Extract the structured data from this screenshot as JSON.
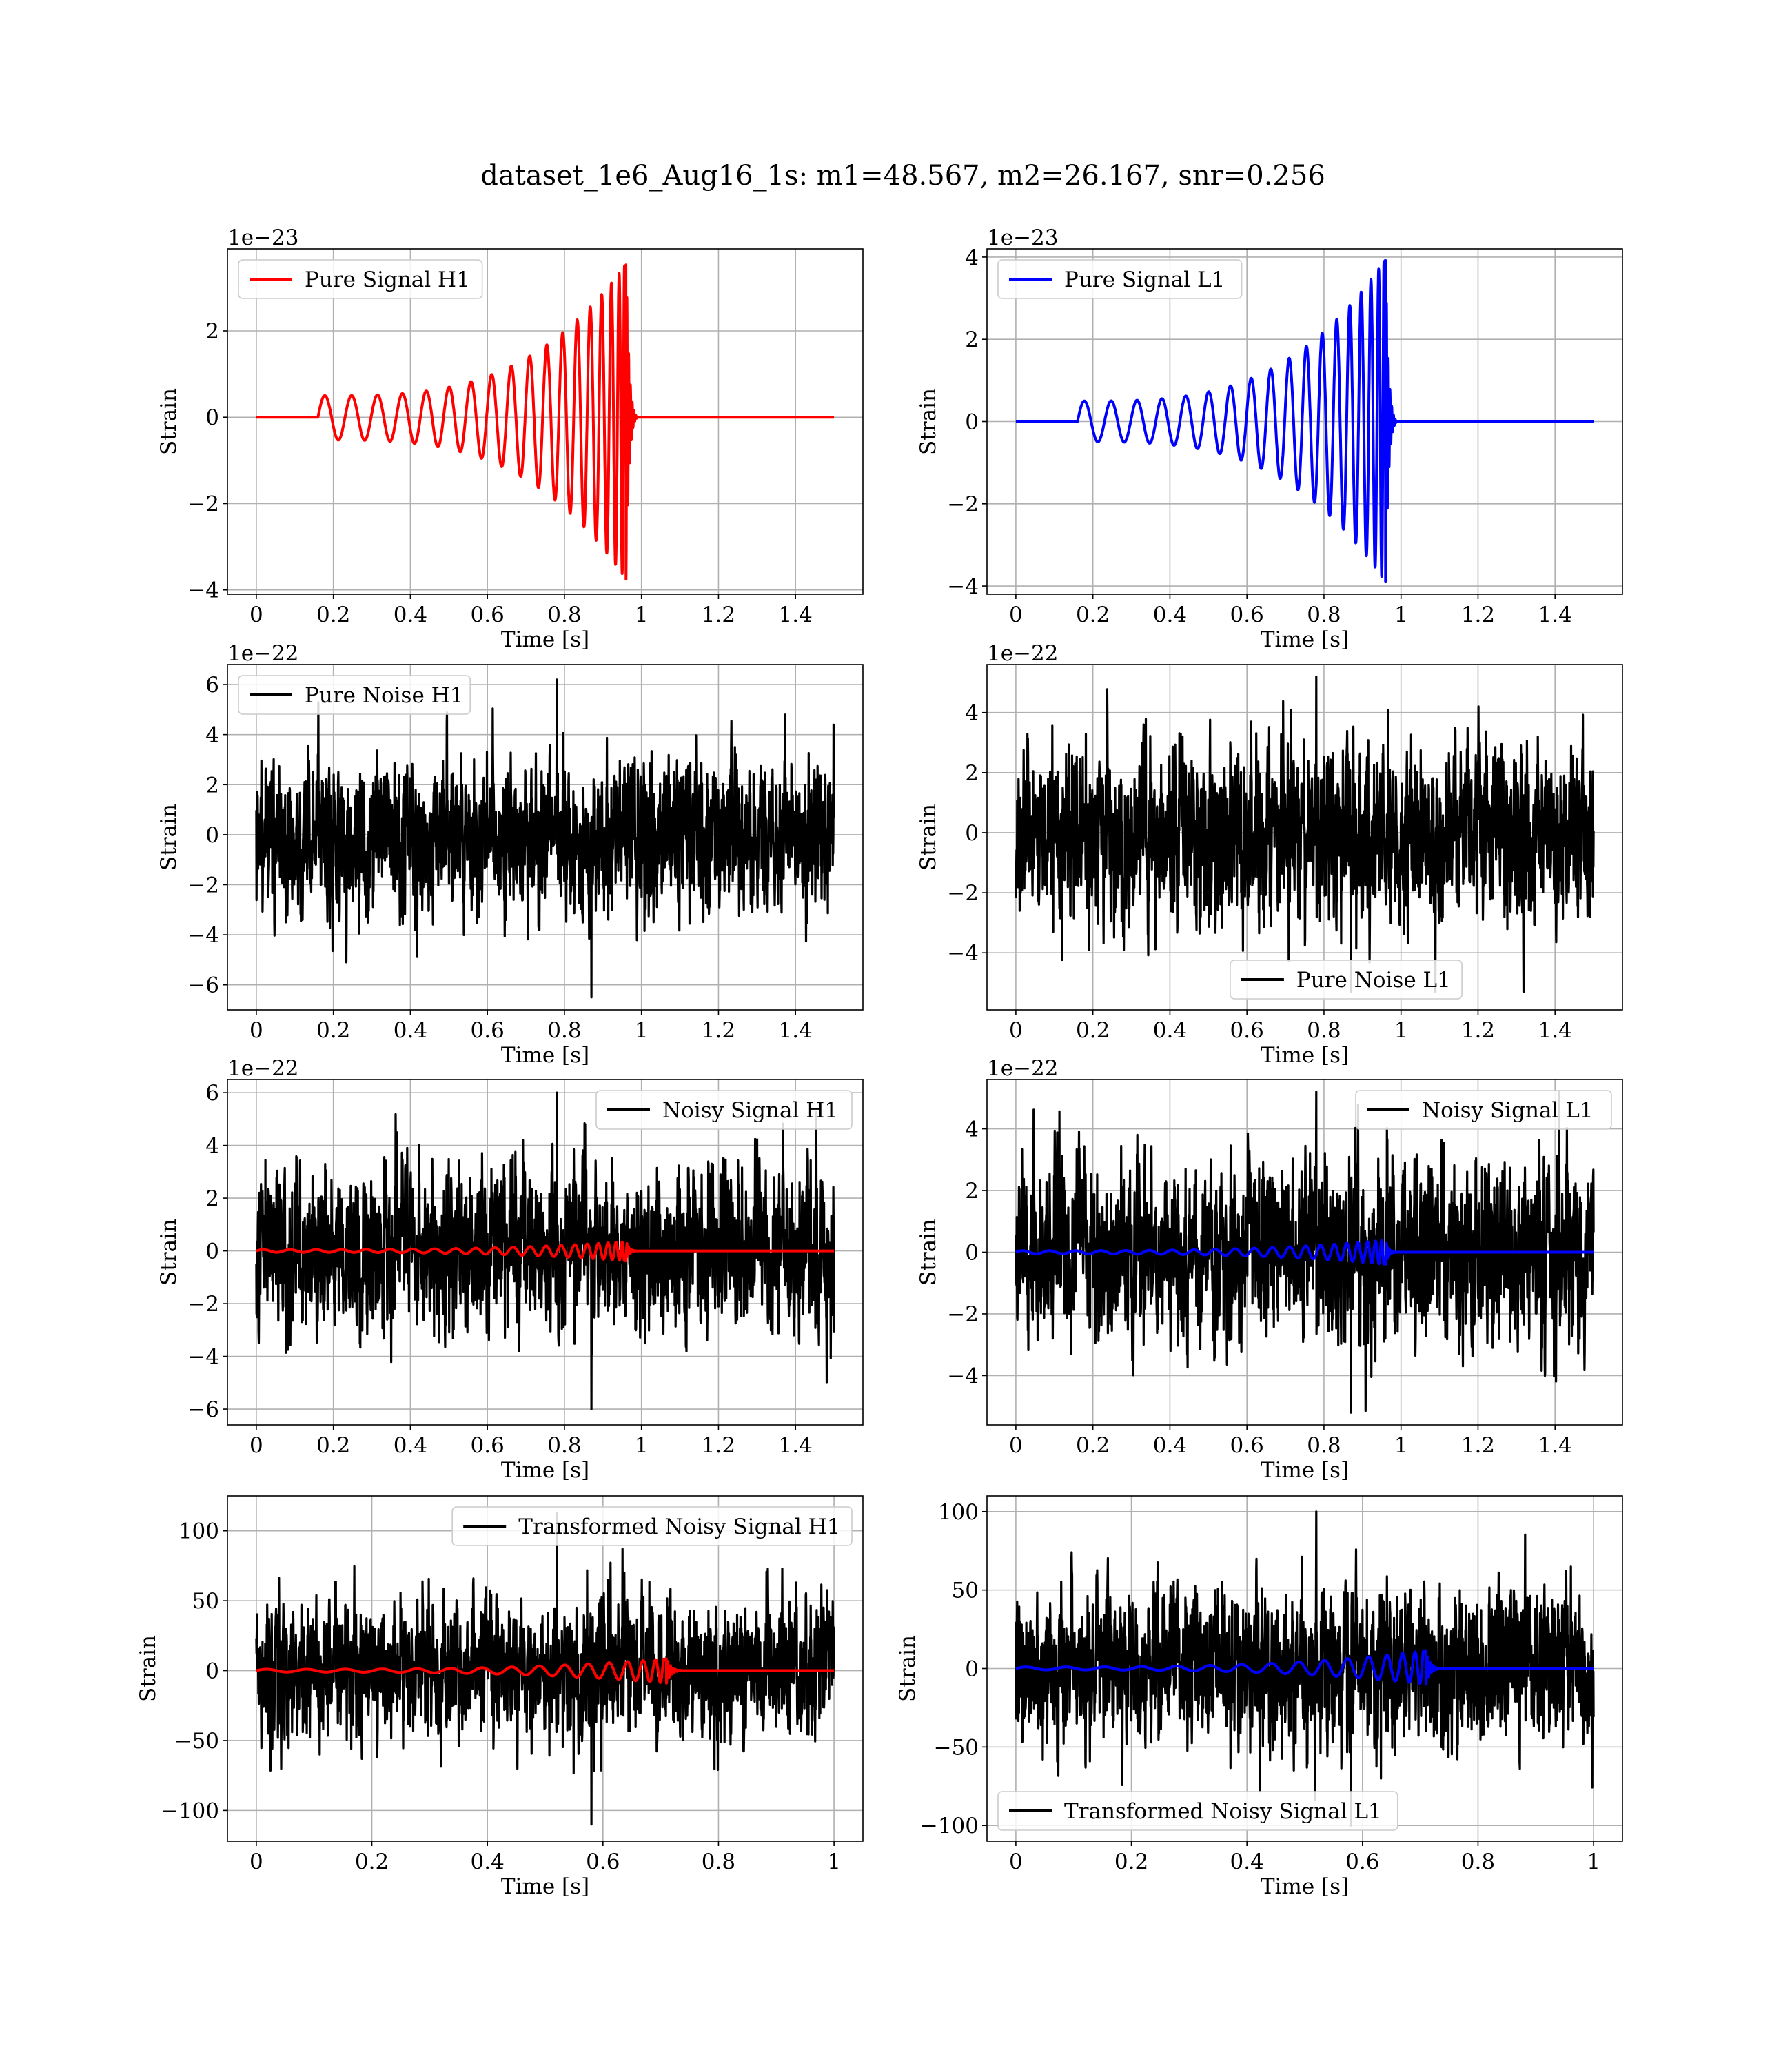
{
  "figure": {
    "suptitle": "dataset_1e6_Aug16_1s: m1=48.567, m2=26.167, snr=0.256"
  },
  "chart_data": [
    {
      "type": "line",
      "panel": "pure-signal-h1",
      "title": "",
      "xlabel": "Time [s]",
      "ylabel": "Strain",
      "offset_text": "1e−23",
      "xlim": [
        -0.075,
        1.575
      ],
      "ylim": [
        -4.1,
        3.9
      ],
      "xticks": [
        0.0,
        0.2,
        0.4,
        0.6,
        0.8,
        1.0,
        1.2,
        1.4
      ],
      "yticks": [
        -4,
        -2,
        0,
        2
      ],
      "grid": true,
      "legend": {
        "position": "upper left",
        "entries": [
          "Pure Signal H1"
        ]
      },
      "series": [
        {
          "name": "Pure Signal H1",
          "color": "#ff0000",
          "shape": "chirp",
          "t_start": 0.16,
          "t_merge": 0.96,
          "t_end": 1.5,
          "amplitude_start": 0.5,
          "amplitude_peak_pos": 3.55,
          "amplitude_peak_neg": -3.75
        }
      ]
    },
    {
      "type": "line",
      "panel": "pure-signal-l1",
      "title": "",
      "xlabel": "Time [s]",
      "ylabel": "Strain",
      "offset_text": "1e−23",
      "xlim": [
        -0.075,
        1.575
      ],
      "ylim": [
        -4.2,
        4.2
      ],
      "xticks": [
        0.0,
        0.2,
        0.4,
        0.6,
        0.8,
        1.0,
        1.2,
        1.4
      ],
      "yticks": [
        -4,
        -2,
        0,
        2,
        4
      ],
      "grid": true,
      "legend": {
        "position": "upper left",
        "entries": [
          "Pure Signal L1"
        ]
      },
      "series": [
        {
          "name": "Pure Signal L1",
          "color": "#0000ff",
          "shape": "chirp",
          "t_start": 0.16,
          "t_merge": 0.96,
          "t_end": 1.5,
          "amplitude_start": 0.5,
          "amplitude_peak_pos": 3.95,
          "amplitude_peak_neg": -3.9
        }
      ]
    },
    {
      "type": "line",
      "panel": "pure-noise-h1",
      "title": "",
      "xlabel": "Time [s]",
      "ylabel": "Strain",
      "offset_text": "1e−22",
      "xlim": [
        -0.075,
        1.575
      ],
      "ylim": [
        -7.0,
        6.8
      ],
      "xticks": [
        0.0,
        0.2,
        0.4,
        0.6,
        0.8,
        1.0,
        1.2,
        1.4
      ],
      "yticks": [
        -6,
        -4,
        -2,
        0,
        2,
        4,
        6
      ],
      "grid": true,
      "legend": {
        "position": "upper left",
        "entries": [
          "Pure Noise H1"
        ]
      },
      "series": [
        {
          "name": "Pure Noise H1",
          "color": "#000000",
          "shape": "noise",
          "t_end": 1.5,
          "sigma": 1.6,
          "peak_pos": 6.2,
          "peak_neg": -6.5
        }
      ]
    },
    {
      "type": "line",
      "panel": "pure-noise-l1",
      "title": "",
      "xlabel": "Time [s]",
      "ylabel": "Strain",
      "offset_text": "1e−22",
      "xlim": [
        -0.075,
        1.575
      ],
      "ylim": [
        -5.9,
        5.6
      ],
      "xticks": [
        0.0,
        0.2,
        0.4,
        0.6,
        0.8,
        1.0,
        1.2,
        1.4
      ],
      "yticks": [
        -4,
        -2,
        0,
        2,
        4
      ],
      "grid": true,
      "legend": {
        "position": "lower center",
        "entries": [
          "Pure Noise L1"
        ]
      },
      "series": [
        {
          "name": "Pure Noise L1",
          "color": "#000000",
          "shape": "noise",
          "t_end": 1.5,
          "sigma": 1.5,
          "peak_pos": 5.2,
          "peak_neg": -5.3
        }
      ]
    },
    {
      "type": "line",
      "panel": "noisy-signal-h1",
      "title": "",
      "xlabel": "Time [s]",
      "ylabel": "Strain",
      "offset_text": "1e−22",
      "xlim": [
        -0.075,
        1.575
      ],
      "ylim": [
        -6.6,
        6.5
      ],
      "xticks": [
        0.0,
        0.2,
        0.4,
        0.6,
        0.8,
        1.0,
        1.2,
        1.4
      ],
      "yticks": [
        -6,
        -4,
        -2,
        0,
        2,
        4,
        6
      ],
      "grid": true,
      "legend": {
        "position": "upper right",
        "entries": [
          "Noisy Signal H1"
        ]
      },
      "series": [
        {
          "name": "Noisy Signal H1",
          "color": "#000000",
          "shape": "noise",
          "t_end": 1.5,
          "sigma": 1.6,
          "peak_pos": 6.0,
          "peak_neg": -6.0
        },
        {
          "color": "#ff0000",
          "shape": "chirp",
          "t_start": 0.0,
          "t_merge": 0.96,
          "t_end": 1.5,
          "amplitude_start": 0.05,
          "amplitude_peak_pos": 0.35,
          "amplitude_peak_neg": -0.38
        }
      ]
    },
    {
      "type": "line",
      "panel": "noisy-signal-l1",
      "title": "",
      "xlabel": "Time [s]",
      "ylabel": "Strain",
      "offset_text": "1e−22",
      "xlim": [
        -0.075,
        1.575
      ],
      "ylim": [
        -5.6,
        5.6
      ],
      "xticks": [
        0.0,
        0.2,
        0.4,
        0.6,
        0.8,
        1.0,
        1.2,
        1.4
      ],
      "yticks": [
        -4,
        -2,
        0,
        2,
        4
      ],
      "grid": true,
      "legend": {
        "position": "upper right",
        "entries": [
          "Noisy Signal L1"
        ]
      },
      "series": [
        {
          "name": "Noisy Signal L1",
          "color": "#000000",
          "shape": "noise",
          "t_end": 1.5,
          "sigma": 1.5,
          "peak_pos": 5.2,
          "peak_neg": -5.2
        },
        {
          "color": "#0000ff",
          "shape": "chirp",
          "t_start": 0.0,
          "t_merge": 0.96,
          "t_end": 1.5,
          "amplitude_start": 0.05,
          "amplitude_peak_pos": 0.39,
          "amplitude_peak_neg": -0.39
        }
      ]
    },
    {
      "type": "line",
      "panel": "transformed-noisy-signal-h1",
      "title": "",
      "xlabel": "Time [s]",
      "ylabel": "Strain",
      "offset_text": "",
      "xlim": [
        -0.05,
        1.05
      ],
      "ylim": [
        -122,
        125
      ],
      "xticks": [
        0.0,
        0.2,
        0.4,
        0.6,
        0.8,
        1.0
      ],
      "yticks": [
        -100,
        -50,
        0,
        50,
        100
      ],
      "grid": true,
      "legend": {
        "position": "upper right",
        "entries": [
          "Transformed Noisy Signal H1"
        ]
      },
      "series": [
        {
          "name": "Transformed Noisy Signal H1",
          "color": "#000000",
          "shape": "noise",
          "t_end": 1.0,
          "sigma": 26,
          "peak_pos": 113,
          "peak_neg": -110
        },
        {
          "color": "#ff0000",
          "shape": "chirp",
          "t_start": 0.0,
          "t_merge": 0.71,
          "t_end": 1.0,
          "amplitude_start": 1.0,
          "amplitude_peak_pos": 8.5,
          "amplitude_peak_neg": -9.0
        }
      ]
    },
    {
      "type": "line",
      "panel": "transformed-noisy-signal-l1",
      "title": "",
      "xlabel": "Time [s]",
      "ylabel": "Strain",
      "offset_text": "",
      "xlim": [
        -0.05,
        1.05
      ],
      "ylim": [
        -110,
        110
      ],
      "xticks": [
        0.0,
        0.2,
        0.4,
        0.6,
        0.8,
        1.0
      ],
      "yticks": [
        -100,
        -50,
        0,
        50,
        100
      ],
      "grid": true,
      "legend": {
        "position": "lower left",
        "entries": [
          "Transformed Noisy Signal L1"
        ]
      },
      "series": [
        {
          "name": "Transformed Noisy Signal L1",
          "color": "#000000",
          "shape": "noise",
          "t_end": 1.0,
          "sigma": 25,
          "peak_pos": 100,
          "peak_neg": -100
        },
        {
          "color": "#0000ff",
          "shape": "chirp",
          "t_start": 0.0,
          "t_merge": 0.71,
          "t_end": 1.0,
          "amplitude_start": 1.0,
          "amplitude_peak_pos": 11.5,
          "amplitude_peak_neg": -10.0
        }
      ]
    }
  ]
}
